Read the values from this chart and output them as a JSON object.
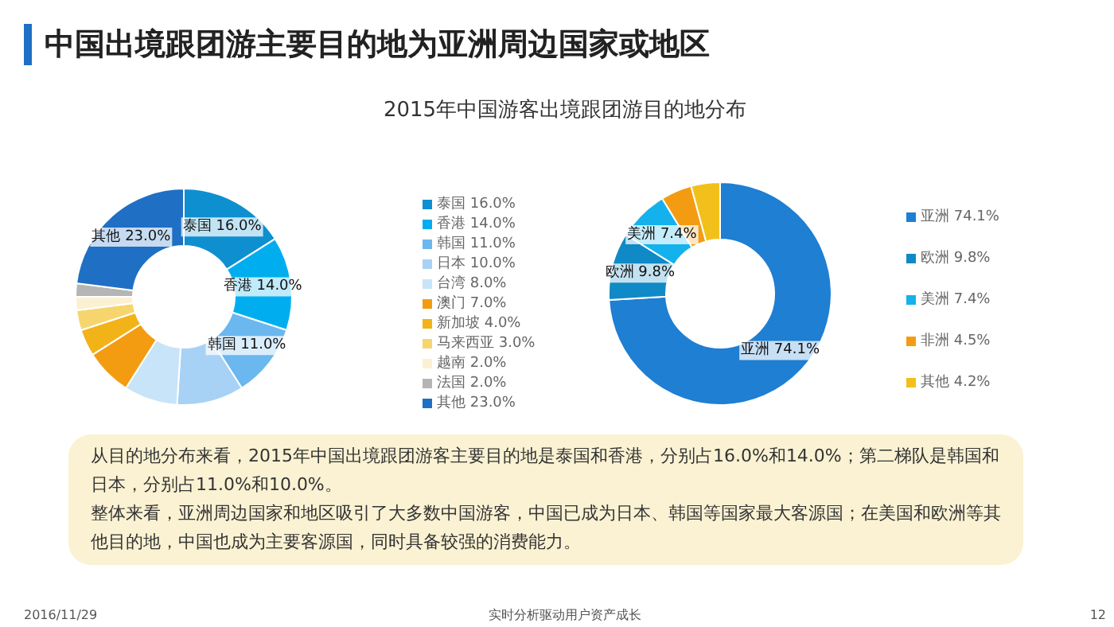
{
  "chart_data": [
    {
      "type": "donut",
      "title": "中国出境跟团游主要目的地为亚洲周边国家或地区",
      "subtitle": "2015年中国游客出境跟团游目的地分布",
      "categories": [
        "泰国 16.0%",
        "香港 14.0%",
        "韩国 11.0%",
        "日本 10.0%",
        "台湾 8.0%",
        "澳门 7.0%",
        "新加坡 4.0%",
        "马来西亚 3.0%",
        "越南 2.0%",
        "法国 2.0%",
        "其他 23.0%"
      ],
      "values": [
        16.0,
        14.0,
        11.0,
        10.0,
        8.0,
        7.0,
        4.0,
        3.0,
        2.0,
        2.0,
        23.0
      ],
      "colors": [
        "#0e8fd0",
        "#00aeef",
        "#6bb7ef",
        "#a8d2f5",
        "#c8e4f8",
        "#f39c12",
        "#f2b318",
        "#f7d56e",
        "#fbf1d2",
        "#b5b5b5",
        "#1f6fc5"
      ],
      "value_labels": [
        "泰国 16.0%",
        "香港 14.0%",
        "韩国 11.0%",
        null,
        null,
        null,
        null,
        null,
        null,
        null,
        "其他 23.0%"
      ],
      "legend": "right",
      "annotations": [
        "从目的地分布来看，2015年中国出境跟团游客主要目的地是泰国和香港，分别占16.0%和14.0%；第二梯队是韩国和日本，分别占11.0%和10.0%。",
        "整体来看，亚洲周边国家和地区吸引了大多数中国游客，中国已成为日本、韩国等国家最大客源国；在美国和欧洲等其他目的地，中国也成为主要客源国，同时具备较强的消费能力。",
        "2016/11/29",
        "实时分析驱动用户资产成长",
        "12"
      ]
    },
    {
      "type": "donut",
      "categories": [
        "亚洲 74.1%",
        "欧洲 9.8%",
        "美洲 7.4%",
        "非洲 4.5%",
        "其他 4.2%"
      ],
      "values": [
        74.1,
        9.8,
        7.4,
        4.5,
        4.2
      ],
      "colors": [
        "#1e7fd3",
        "#0f8ac6",
        "#14b2ec",
        "#f39c12",
        "#f2c01a"
      ],
      "value_labels": [
        "亚洲 74.1%",
        "欧洲 9.8%",
        "美洲 7.4%",
        null,
        null
      ],
      "legend": "right"
    }
  ]
}
